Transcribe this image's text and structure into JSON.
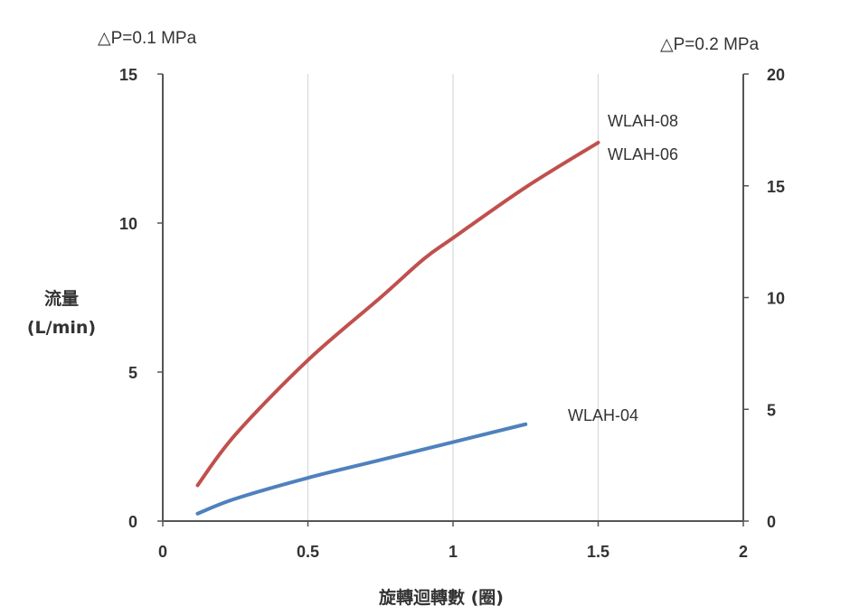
{
  "chart_data": {
    "type": "line",
    "ylabel_line1": "流量",
    "ylabel_line2": "(L/min)",
    "xlabel": "旋轉迴轉數 (圈)",
    "left_axis_title": "△P=0.1 MPa",
    "right_axis_title": "△P=0.2 MPa",
    "xlim": [
      0,
      2
    ],
    "ylim_left": [
      0,
      15
    ],
    "ylim_right": [
      0,
      20
    ],
    "x_ticks": [
      "0",
      "0.5",
      "1",
      "1.5",
      "2"
    ],
    "y_left_ticks": [
      "0",
      "5",
      "10",
      "15"
    ],
    "y_right_ticks": [
      "0",
      "5",
      "10",
      "15",
      "20"
    ],
    "grid": "vertical",
    "series": [
      {
        "name": "WLAH-08",
        "label2": "WLAH-06",
        "color": "#c0504d",
        "x": [
          0.12,
          0.25,
          0.5,
          0.75,
          0.9,
          1.0,
          1.25,
          1.5
        ],
        "y": [
          1.2,
          2.9,
          5.4,
          7.5,
          8.8,
          9.5,
          11.2,
          12.7
        ]
      },
      {
        "name": "WLAH-04",
        "color": "#4f81bd",
        "x": [
          0.12,
          0.25,
          0.5,
          0.75,
          1.0,
          1.25
        ],
        "y": [
          0.25,
          0.75,
          1.45,
          2.05,
          2.65,
          3.25
        ]
      }
    ]
  }
}
